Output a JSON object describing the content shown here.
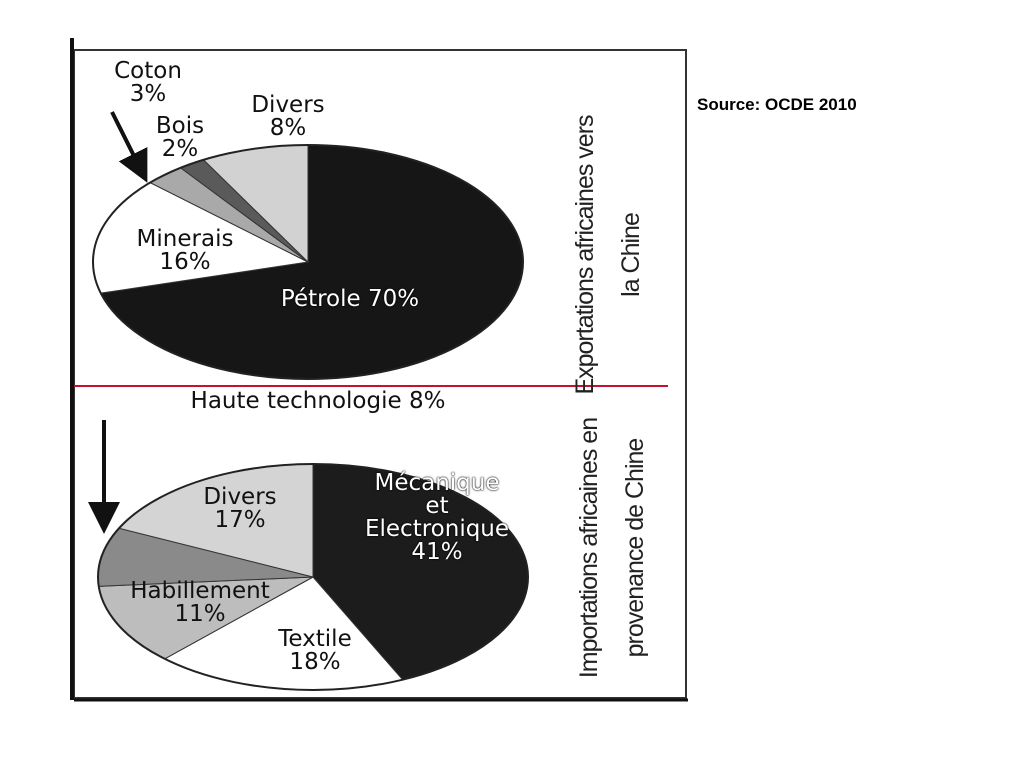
{
  "chart_data": [
    {
      "type": "pie",
      "title": "Exportations africaines vers la Chine",
      "categories": [
        "Pétrole",
        "Minerais",
        "Coton",
        "Bois",
        "Divers"
      ],
      "values": [
        70,
        16,
        3,
        2,
        8
      ],
      "value_labels": [
        "70%",
        "16%",
        "3%",
        "2%",
        "8%"
      ],
      "colors": [
        "#161616",
        "#ffffff",
        "#a9a9a9",
        "#5a5a5a",
        "#d2d2d2"
      ]
    },
    {
      "type": "pie",
      "title": "Importations africaines en provenance de Chine",
      "categories": [
        "Mécanique et Electronique",
        "Textile",
        "Habillement",
        "Haute technologie",
        "Divers"
      ],
      "values": [
        41,
        18,
        11,
        8,
        17
      ],
      "value_labels": [
        "41%",
        "18%",
        "11%",
        "8%",
        "17%"
      ],
      "colors": [
        "#1c1c1c",
        "#ffffff",
        "#bdbdbd",
        "#8a8a8a",
        "#d4d4d4"
      ]
    }
  ],
  "source": "Source: OCDE 2010"
}
